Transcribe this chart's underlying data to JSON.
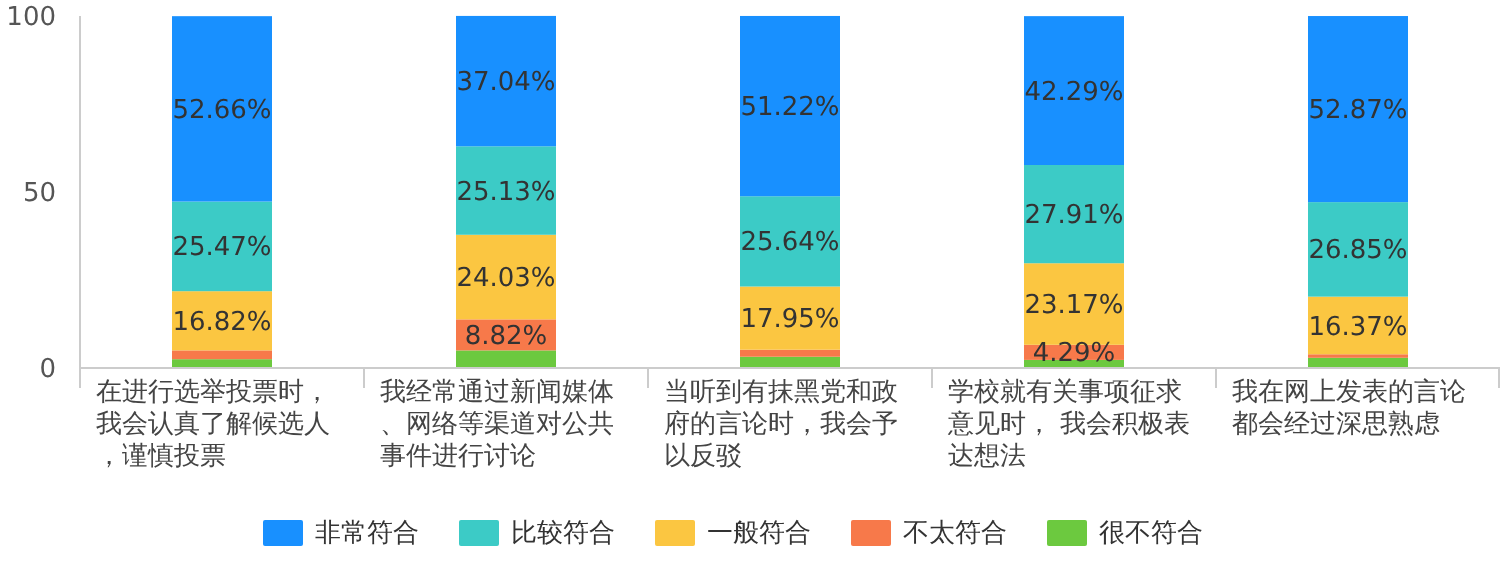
{
  "chart_data": {
    "type": "bar",
    "stacked": true,
    "categories": [
      "在进行选举投票时，我会认真了解候选人，谨慎投票",
      "我经常通过新闻媒体、网络等渠道对公共事件进行讨论",
      "当听到有抹黑党和政府的言论时，我会予以反驳",
      "学校就有关事项征求意见时， 我会积极表达想法",
      "我在网上发表的言论都会经过深思熟虑"
    ],
    "series": [
      {
        "name": "很不符合",
        "color": "#6cc93f",
        "values": [
          2.5,
          5,
          3.2,
          2.3,
          2.9
        ],
        "value_labels": [
          null,
          null,
          null,
          null,
          null
        ]
      },
      {
        "name": "不太符合",
        "color": "#f7794a",
        "values": [
          2.5,
          8.82,
          2,
          4.29,
          1
        ],
        "value_labels": [
          null,
          "8.82%",
          null,
          "4.29%",
          null
        ]
      },
      {
        "name": "一般符合",
        "color": "#fbc641",
        "values": [
          16.82,
          24.03,
          17.95,
          23.17,
          16.37
        ],
        "value_labels": [
          "16.82%",
          "24.03%",
          "17.95%",
          "23.17%",
          "16.37%"
        ]
      },
      {
        "name": "比较符合",
        "color": "#3ccbc6",
        "values": [
          25.47,
          25.13,
          25.64,
          27.91,
          26.85
        ],
        "value_labels": [
          "25.47%",
          "25.13%",
          "25.64%",
          "27.91%",
          "26.85%"
        ]
      },
      {
        "name": "非常符合",
        "color": "#1890ff",
        "values": [
          52.66,
          37.04,
          51.22,
          42.29,
          52.87
        ],
        "value_labels": [
          "52.66%",
          "37.04%",
          "51.22%",
          "42.29%",
          "52.87%"
        ]
      }
    ],
    "ylim": [
      0,
      100
    ],
    "yticks": [
      0,
      50,
      100
    ],
    "grid": false,
    "legend": "bottom"
  }
}
